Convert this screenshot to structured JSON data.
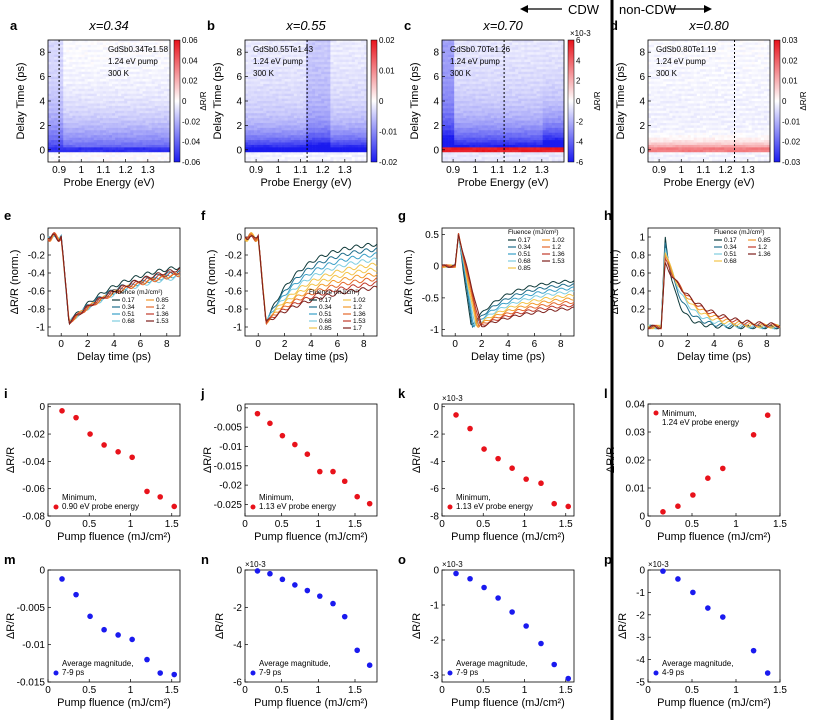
{
  "header": {
    "cdw_label": "CDW",
    "noncdw_label": "non-CDW",
    "x_labels": [
      "x=0.34",
      "x=0.55",
      "x=0.70",
      "x=0.80"
    ]
  },
  "colors": {
    "red": "#e8121b",
    "blue": "#1a1aef",
    "fluence": [
      "#0f3a3a",
      "#1f6e8c",
      "#3aa0c8",
      "#7ecde0",
      "#f3c44a",
      "#f29a2a",
      "#e4672a",
      "#c03a2a",
      "#7d1f1a"
    ]
  },
  "chart_data": [
    {
      "panel": "a",
      "type": "heatmap",
      "title": "x=0.34",
      "annotation": [
        "GdSb0.34Te1.58",
        "1.24 eV pump",
        "300 K"
      ],
      "xlabel": "Probe Energy (eV)",
      "ylabel": "Delay Time (ps)",
      "xlim": [
        0.85,
        1.4
      ],
      "ylim": [
        -1,
        9
      ],
      "xticks": [
        "0.9",
        "1",
        "1.1",
        "1.2",
        "1.3"
      ],
      "yticks": [
        "0",
        "2",
        "4",
        "6",
        "8"
      ],
      "colorbar": {
        "ticks": [
          "0.06",
          "0.04",
          "0.02",
          "0",
          "-0.02",
          "-0.04",
          "-0.06"
        ],
        "label": "ΔR/R"
      },
      "marker_line": 0.9
    },
    {
      "panel": "b",
      "type": "heatmap",
      "title": "x=0.55",
      "annotation": [
        "GdSb0.55Te1.43",
        "1.24 eV pump",
        "300 K"
      ],
      "xlabel": "Probe Energy (eV)",
      "ylabel": "Delay Time (ps)",
      "xlim": [
        0.85,
        1.4
      ],
      "ylim": [
        -1,
        9
      ],
      "xticks": [
        "0.9",
        "1",
        "1.1",
        "1.2",
        "1.3"
      ],
      "yticks": [
        "0",
        "2",
        "4",
        "6",
        "8"
      ],
      "colorbar": {
        "ticks": [
          "0.02",
          "0.01",
          "0",
          "-0.01",
          "-0.02"
        ],
        "label": ""
      },
      "marker_line": 1.13
    },
    {
      "panel": "c",
      "type": "heatmap",
      "title": "x=0.70",
      "annotation": [
        "GdSb0.70Te1.26",
        "1.24 eV pump",
        "300 K"
      ],
      "xlabel": "Probe Energy (eV)",
      "ylabel": "Delay Time (ps)",
      "xlim": [
        0.85,
        1.4
      ],
      "ylim": [
        -1,
        9
      ],
      "xticks": [
        "0.9",
        "1",
        "1.1",
        "1.2",
        "1.3"
      ],
      "yticks": [
        "0",
        "2",
        "4",
        "6",
        "8"
      ],
      "colorbar": {
        "ticks": [
          "6",
          "4",
          "2",
          "0",
          "-2",
          "-4",
          "-6"
        ],
        "label": "ΔR/R",
        "exponent": "×10-3"
      },
      "marker_line": 1.13
    },
    {
      "panel": "d",
      "type": "heatmap",
      "title": "x=0.80",
      "annotation": [
        "GdSb0.80Te1.19",
        "1.24 eV pump",
        "300 K"
      ],
      "xlabel": "Probe Energy (eV)",
      "ylabel": "Delay Time (ps)",
      "xlim": [
        0.85,
        1.4
      ],
      "ylim": [
        -1,
        9
      ],
      "xticks": [
        "0.9",
        "1",
        "1.1",
        "1.2",
        "1.3"
      ],
      "yticks": [
        "0",
        "2",
        "4",
        "6",
        "8"
      ],
      "colorbar": {
        "ticks": [
          "0.03",
          "0.02",
          "0.01",
          "0",
          "-0.01",
          "-0.02",
          "-0.03"
        ],
        "label": "ΔR/R"
      },
      "marker_line": 1.24
    },
    {
      "panel": "e",
      "type": "line",
      "xlabel": "Delay time (ps)",
      "ylabel": "ΔR/R (norm.)",
      "xlim": [
        -1,
        9
      ],
      "ylim": [
        -1.1,
        0.1
      ],
      "xticks": [
        "0",
        "2",
        "4",
        "6",
        "8"
      ],
      "yticks": [
        "0",
        "-0.2",
        "-0.4",
        "-0.6",
        "-0.8",
        "-1"
      ],
      "legend_title": "Fluence (mJ/cm²)",
      "legend_position": "lower-right",
      "legend": [
        "0.17",
        "0.34",
        "0.51",
        "0.68",
        "0.85",
        "1.2",
        "1.36",
        "1.53"
      ],
      "mode": "neg",
      "minTime": 0.6,
      "recoverTo": [
        -0.25,
        -0.3,
        -0.33,
        -0.35,
        -0.3,
        -0.3,
        -0.25,
        -0.2
      ],
      "tau": 4
    },
    {
      "panel": "f",
      "type": "line",
      "xlabel": "Delay time (ps)",
      "ylabel": "ΔR/R (norm.)",
      "xlim": [
        -1,
        9
      ],
      "ylim": [
        -1.1,
        0.1
      ],
      "xticks": [
        "0",
        "2",
        "4",
        "6",
        "8"
      ],
      "yticks": [
        "0",
        "-0.2",
        "-0.4",
        "-0.6",
        "-0.8",
        "-1"
      ],
      "legend_title": "Fluence (mJ/cm²)",
      "legend_position": "lower-right",
      "legend": [
        "0.17",
        "0.34",
        "0.51",
        "0.68",
        "0.85",
        "1.02",
        "1.2",
        "1.36",
        "1.53",
        "1.7"
      ],
      "mode": "neg",
      "minTime": 0.6,
      "recoverTo": [
        -0.05,
        -0.1,
        -0.15,
        -0.2,
        -0.25,
        -0.3,
        -0.35,
        -0.4,
        -0.45,
        -0.5
      ],
      "tau": 2.5
    },
    {
      "panel": "g",
      "type": "line",
      "xlabel": "Delay time (ps)",
      "ylabel": "ΔR/R (norm.)",
      "xlim": [
        -1,
        9
      ],
      "ylim": [
        -1.1,
        0.6
      ],
      "xticks": [
        "0",
        "2",
        "4",
        "6",
        "8"
      ],
      "yticks": [
        "0.5",
        "0",
        "-0.5",
        "-1"
      ],
      "legend_title": "Fluence (mJ/cm²)",
      "legend_position": "top-right",
      "legend": [
        "0.17",
        "0.34",
        "0.51",
        "0.68",
        "0.85",
        "1.02",
        "1.2",
        "1.36",
        "1.53"
      ],
      "mode": "spike",
      "minTime": 1.2,
      "recoverTo": [
        -0.2,
        -0.25,
        -0.3,
        -0.35,
        -0.4,
        -0.45,
        -0.5,
        -0.55,
        -0.6
      ],
      "tau": 2.5
    },
    {
      "panel": "h",
      "type": "line",
      "xlabel": "Delay time (ps)",
      "ylabel": "ΔR/R (norm.)",
      "xlim": [
        -1,
        9
      ],
      "ylim": [
        -0.1,
        1.1
      ],
      "xticks": [
        "0",
        "2",
        "4",
        "6",
        "8"
      ],
      "yticks": [
        "0",
        "0.2",
        "0.4",
        "0.6",
        "0.8",
        "1"
      ],
      "legend_title": "Fluence (mJ/cm²)",
      "legend_position": "top-right",
      "legend": [
        "0.17",
        "0.34",
        "0.51",
        "0.68",
        "0.85",
        "1.2",
        "1.36"
      ],
      "mode": "pos",
      "minTime": 0.3,
      "recoverTo": [
        0,
        0,
        0,
        0,
        0,
        0,
        0
      ],
      "tau": 0.8
    },
    {
      "panel": "i",
      "type": "scatter",
      "xlabel": "Pump fluence (mJ/cm²)",
      "ylabel": "ΔR/R",
      "xlim": [
        0,
        1.6
      ],
      "ylim": [
        -0.08,
        0.002
      ],
      "xticks": [
        [
          "0",
          0
        ],
        [
          "0.5",
          0.5
        ],
        [
          "1",
          1
        ],
        [
          "1.5",
          1.5
        ]
      ],
      "yticks": [
        [
          "0",
          0
        ],
        [
          "-0.02",
          -0.02
        ],
        [
          "-0.04",
          -0.04
        ],
        [
          "-0.06",
          -0.06
        ],
        [
          "-0.08",
          -0.08
        ]
      ],
      "legend": [
        "Minimum,",
        "0.90 eV probe energy"
      ],
      "legend_position": "bottom-left",
      "color": "red",
      "x": [
        0.17,
        0.34,
        0.51,
        0.68,
        0.85,
        1.02,
        1.2,
        1.36,
        1.53
      ],
      "y": [
        -0.003,
        -0.008,
        -0.02,
        -0.028,
        -0.033,
        -0.037,
        -0.062,
        -0.066,
        -0.073
      ]
    },
    {
      "panel": "j",
      "type": "scatter",
      "xlabel": "Pump fluence (mJ/cm²)",
      "ylabel": "ΔR/R",
      "xlim": [
        0,
        1.8
      ],
      "ylim": [
        -0.028,
        0.001
      ],
      "xticks": [
        [
          "0",
          0
        ],
        [
          "0.5",
          0.5
        ],
        [
          "1",
          1
        ],
        [
          "1.5",
          1.5
        ]
      ],
      "yticks": [
        [
          "0",
          0
        ],
        [
          "-0.005",
          -0.005
        ],
        [
          "-0.01",
          -0.01
        ],
        [
          "-0.015",
          -0.015
        ],
        [
          "-0.02",
          -0.02
        ],
        [
          "-0.025",
          -0.025
        ]
      ],
      "legend": [
        "Minimum,",
        "1.13 eV probe energy"
      ],
      "legend_position": "bottom-left",
      "color": "red",
      "x": [
        0.17,
        0.34,
        0.51,
        0.68,
        0.85,
        1.02,
        1.2,
        1.36,
        1.53,
        1.7
      ],
      "y": [
        -0.0015,
        -0.004,
        -0.0072,
        -0.0095,
        -0.012,
        -0.0165,
        -0.0165,
        -0.019,
        -0.023,
        -0.0248
      ]
    },
    {
      "panel": "k",
      "type": "scatter",
      "xlabel": "Pump fluence (mJ/cm²)",
      "ylabel": "ΔR/R",
      "xlim": [
        0,
        1.6
      ],
      "ylim": [
        -8,
        0.2
      ],
      "exponent": "×10-3",
      "xticks": [
        [
          "0",
          0
        ],
        [
          "0.5",
          0.5
        ],
        [
          "1",
          1
        ],
        [
          "1.5",
          1.5
        ]
      ],
      "yticks": [
        [
          "0",
          0
        ],
        [
          "-2",
          -2
        ],
        [
          "-4",
          -4
        ],
        [
          "-6",
          -6
        ],
        [
          "-8",
          -8
        ]
      ],
      "legend": [
        "Minimum,",
        "1.13 eV probe energy"
      ],
      "legend_position": "bottom-left",
      "color": "red",
      "x": [
        0.17,
        0.34,
        0.51,
        0.68,
        0.85,
        1.02,
        1.2,
        1.36,
        1.53
      ],
      "y": [
        -0.6,
        -1.6,
        -3.1,
        -3.8,
        -4.5,
        -5.3,
        -5.6,
        -7.1,
        -7.3
      ]
    },
    {
      "panel": "l",
      "type": "scatter",
      "xlabel": "Pump fluence (mJ/cm²)",
      "ylabel": "ΔR/R",
      "xlim": [
        0,
        1.5
      ],
      "ylim": [
        0,
        0.04
      ],
      "xticks": [
        [
          "0",
          0
        ],
        [
          "0.5",
          0.5
        ],
        [
          "1",
          1
        ],
        [
          "1.5",
          1.5
        ]
      ],
      "yticks": [
        [
          "0",
          0
        ],
        [
          "0.01",
          0.01
        ],
        [
          "0.02",
          0.02
        ],
        [
          "0.03",
          0.03
        ],
        [
          "0.04",
          0.04
        ]
      ],
      "legend": [
        "Minimum,",
        "1.24 eV probe energy"
      ],
      "legend_position": "top-left",
      "color": "red",
      "x": [
        0.17,
        0.34,
        0.51,
        0.68,
        0.85,
        1.2,
        1.36
      ],
      "y": [
        0.0015,
        0.0035,
        0.0075,
        0.0135,
        0.017,
        0.029,
        0.036
      ]
    },
    {
      "panel": "m",
      "type": "scatter",
      "xlabel": "Pump fluence (mJ/cm²)",
      "ylabel": "ΔR/R",
      "xlim": [
        0,
        1.6
      ],
      "ylim": [
        -0.015,
        0
      ],
      "xticks": [
        [
          "0",
          0
        ],
        [
          "0.5",
          0.5
        ],
        [
          "1",
          1
        ],
        [
          "1.5",
          1.5
        ]
      ],
      "yticks": [
        [
          "0",
          0
        ],
        [
          "-0.005",
          -0.005
        ],
        [
          "-0.01",
          -0.01
        ],
        [
          "-0.015",
          -0.015
        ]
      ],
      "legend": [
        "Average magnitude,",
        "7-9 ps"
      ],
      "legend_position": "bottom-left",
      "color": "blue",
      "x": [
        0.17,
        0.34,
        0.51,
        0.68,
        0.85,
        1.02,
        1.2,
        1.36,
        1.53
      ],
      "y": [
        -0.0012,
        -0.0033,
        -0.0062,
        -0.008,
        -0.0087,
        -0.0093,
        -0.012,
        -0.0138,
        -0.014
      ]
    },
    {
      "panel": "n",
      "type": "scatter",
      "xlabel": "Pump fluence (mJ/cm²)",
      "ylabel": "ΔR/R",
      "xlim": [
        0,
        1.8
      ],
      "ylim": [
        -6,
        0
      ],
      "exponent": "×10-3",
      "xticks": [
        [
          "0",
          0
        ],
        [
          "0.5",
          0.5
        ],
        [
          "1",
          1
        ],
        [
          "1.5",
          1.5
        ]
      ],
      "yticks": [
        [
          "0",
          0
        ],
        [
          "-2",
          -2
        ],
        [
          "-4",
          -4
        ],
        [
          "-6",
          -6
        ]
      ],
      "legend": [
        "Average magnitude,",
        "7-9 ps"
      ],
      "legend_position": "bottom-left",
      "color": "blue",
      "x": [
        0.17,
        0.34,
        0.51,
        0.68,
        0.85,
        1.02,
        1.2,
        1.36,
        1.53,
        1.7
      ],
      "y": [
        -0.05,
        -0.2,
        -0.5,
        -0.8,
        -1.1,
        -1.4,
        -1.8,
        -2.5,
        -4.3,
        -5.1
      ]
    },
    {
      "panel": "o",
      "type": "scatter",
      "xlabel": "Pump fluence (mJ/cm²)",
      "ylabel": "ΔR/R",
      "xlim": [
        0,
        1.6
      ],
      "ylim": [
        -3.2,
        0
      ],
      "exponent": "×10-3",
      "xticks": [
        [
          "0",
          0
        ],
        [
          "0.5",
          0.5
        ],
        [
          "1",
          1
        ],
        [
          "1.5",
          1.5
        ]
      ],
      "yticks": [
        [
          "0",
          0
        ],
        [
          "-1",
          -1
        ],
        [
          "-2",
          -2
        ],
        [
          "-3",
          -3
        ]
      ],
      "legend": [
        "Average magnitude,",
        "7-9 ps"
      ],
      "legend_position": "bottom-left",
      "color": "blue",
      "x": [
        0.17,
        0.34,
        0.51,
        0.68,
        0.85,
        1.02,
        1.2,
        1.36,
        1.53
      ],
      "y": [
        -0.1,
        -0.25,
        -0.5,
        -0.8,
        -1.2,
        -1.6,
        -2.1,
        -2.7,
        -3.1
      ]
    },
    {
      "panel": "p",
      "type": "scatter",
      "xlabel": "Pump fluence (mJ/cm²)",
      "ylabel": "ΔR/R",
      "xlim": [
        0,
        1.5
      ],
      "ylim": [
        -5,
        0
      ],
      "exponent": "×10-3",
      "xticks": [
        [
          "0",
          0
        ],
        [
          "0.5",
          0.5
        ],
        [
          "1",
          1
        ],
        [
          "1.5",
          1.5
        ]
      ],
      "yticks": [
        [
          "0",
          0
        ],
        [
          "-1",
          -1
        ],
        [
          "-2",
          -2
        ],
        [
          "-3",
          -3
        ],
        [
          "-4",
          -4
        ],
        [
          "-5",
          -5
        ]
      ],
      "legend": [
        "Average magnitude,",
        "4-9 ps"
      ],
      "legend_position": "bottom-left",
      "color": "blue",
      "x": [
        0.17,
        0.34,
        0.51,
        0.68,
        0.85,
        1.2,
        1.36
      ],
      "y": [
        -0.05,
        -0.4,
        -1.0,
        -1.7,
        -2.1,
        -3.6,
        -4.6
      ]
    }
  ]
}
